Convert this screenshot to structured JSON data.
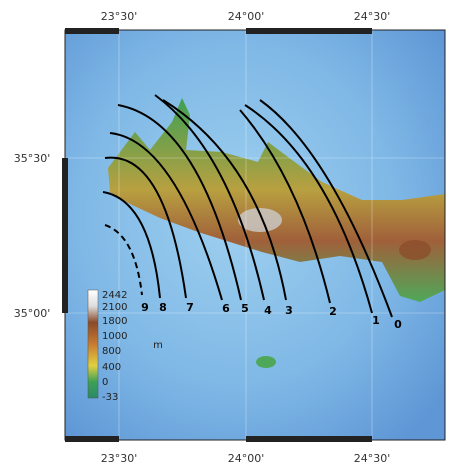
{
  "frame": {
    "top_labels": [
      "23°30'",
      "24°00'",
      "24°30'"
    ],
    "bottom_labels": [
      "23°30'",
      "24°00'",
      "24°30'"
    ],
    "left_labels": [
      "35°30'",
      "35°00'"
    ]
  },
  "colorbar": {
    "labels": [
      "2442",
      "2100",
      "1800",
      "1000",
      "800",
      "400",
      "0",
      "-33"
    ],
    "unit": "m"
  },
  "profiles": {
    "labels": [
      "9",
      "8",
      "7",
      "6",
      "5",
      "4",
      "3",
      "2",
      "1",
      "0"
    ]
  }
}
